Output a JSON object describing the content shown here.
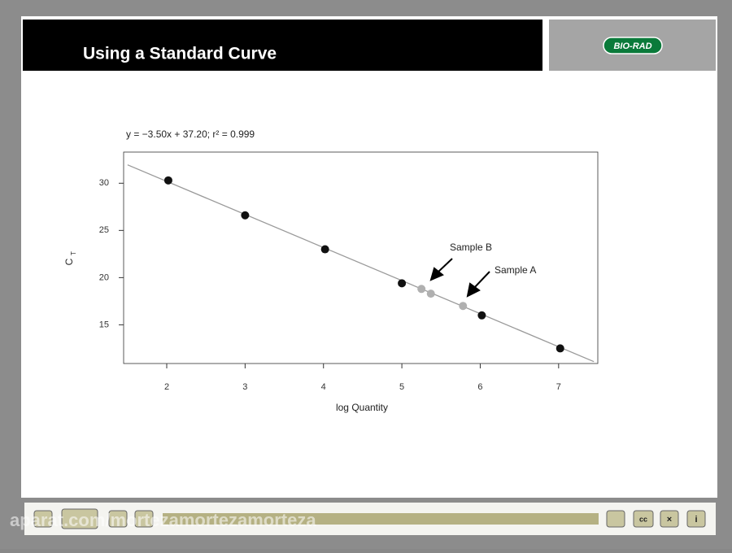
{
  "header": {
    "title": "Using a Standard Curve",
    "logo": "BIO-RAD"
  },
  "chart_data": {
    "type": "scatter",
    "equation": "y = −3.50x + 37.20; r² = 0.999",
    "xlabel": "log Quantity",
    "ylabel": "C",
    "ylabel_sub": "T",
    "xlim": [
      1.45,
      7.5
    ],
    "ylim": [
      10.9,
      33.3
    ],
    "xticks": [
      2,
      3,
      4,
      5,
      6,
      7
    ],
    "yticks": [
      15,
      20,
      25,
      30
    ],
    "grid": false,
    "fit": {
      "color": "#9a9a9a",
      "x": [
        1.5,
        7.45
      ],
      "values": [
        31.95,
        11.1
      ]
    },
    "series": [
      {
        "color": "#111111",
        "x": [
          2.02,
          3,
          4.02,
          5,
          6.02,
          7.02
        ],
        "values": [
          30.3,
          26.6,
          23.0,
          19.4,
          16.0,
          12.5
        ]
      },
      {
        "color": "#b0b0b0",
        "x": [
          5.25,
          5.37,
          5.78
        ],
        "values": [
          18.8,
          18.3,
          17.0
        ]
      }
    ],
    "annotations": [
      {
        "text": "Sample B"
      },
      {
        "text": "Sample A"
      }
    ]
  },
  "toolbar": {
    "captions": "cc",
    "info": "i"
  },
  "watermark": "aparat.com/mortezamortezamorteza"
}
